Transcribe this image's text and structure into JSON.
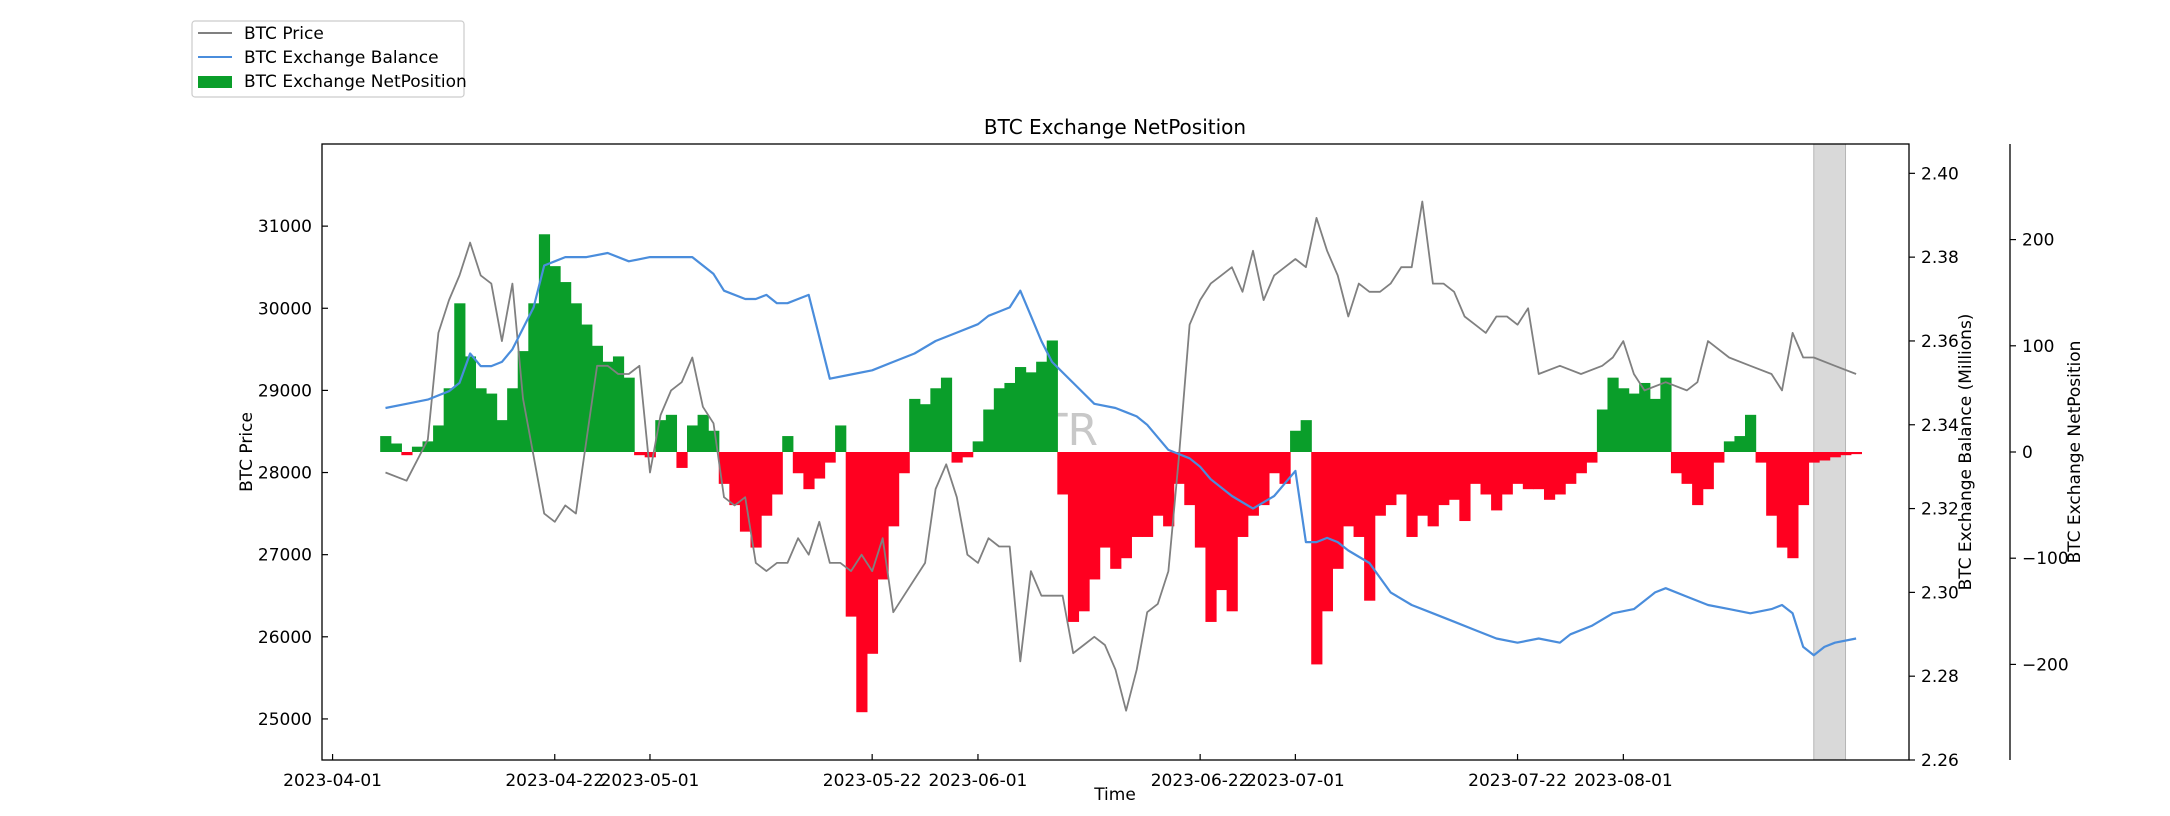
{
  "chart_data": {
    "type": "line",
    "title": "BTC Exchange NetPosition",
    "xlabel": "Time",
    "watermark": "ATR",
    "x_ticks": [
      "2023-04-01",
      "2023-04-22",
      "2023-05-01",
      "2023-05-22",
      "2023-06-01",
      "2023-06-22",
      "2023-07-01",
      "2023-07-22",
      "2023-08-01"
    ],
    "x_range": [
      "2023-03-31",
      "2023-08-28"
    ],
    "highlight_range": [
      "2023-08-19",
      "2023-08-22"
    ],
    "legend_position": "top-left, outside plot",
    "grid": false,
    "axes": {
      "price": {
        "label": "BTC Price",
        "side": "left",
        "ylim": [
          24500,
          32000
        ],
        "ticks": [
          "25000",
          "26000",
          "27000",
          "28000",
          "29000",
          "30000",
          "31000"
        ]
      },
      "balance": {
        "label": "BTC Exchange Balance (Millions)",
        "side": "right",
        "ylim": [
          2.26,
          2.407
        ],
        "ticks": [
          "2.26",
          "2.28",
          "2.30",
          "2.32",
          "2.34",
          "2.36",
          "2.38",
          "2.40"
        ]
      },
      "netposition": {
        "label": "BTC Exchange NetPosition",
        "side": "right-outer",
        "ylim": [
          -290,
          290
        ],
        "ticks": [
          "−200",
          "−100",
          "0",
          "100",
          "200"
        ]
      }
    },
    "series": [
      {
        "name": "BTC Price",
        "type": "line",
        "axis": "price",
        "color": "#808080",
        "x": [
          "2023-04-06",
          "2023-04-08",
          "2023-04-10",
          "2023-04-11",
          "2023-04-12",
          "2023-04-13",
          "2023-04-14",
          "2023-04-15",
          "2023-04-16",
          "2023-04-17",
          "2023-04-18",
          "2023-04-19",
          "2023-04-20",
          "2023-04-21",
          "2023-04-22",
          "2023-04-23",
          "2023-04-24",
          "2023-04-25",
          "2023-04-26",
          "2023-04-27",
          "2023-04-28",
          "2023-04-29",
          "2023-04-30",
          "2023-05-01",
          "2023-05-02",
          "2023-05-03",
          "2023-05-04",
          "2023-05-05",
          "2023-05-06",
          "2023-05-07",
          "2023-05-08",
          "2023-05-09",
          "2023-05-10",
          "2023-05-11",
          "2023-05-12",
          "2023-05-13",
          "2023-05-14",
          "2023-05-15",
          "2023-05-16",
          "2023-05-17",
          "2023-05-18",
          "2023-05-19",
          "2023-05-20",
          "2023-05-21",
          "2023-05-22",
          "2023-05-23",
          "2023-05-24",
          "2023-05-25",
          "2023-05-26",
          "2023-05-27",
          "2023-05-28",
          "2023-05-29",
          "2023-05-30",
          "2023-05-31",
          "2023-06-01",
          "2023-06-02",
          "2023-06-03",
          "2023-06-04",
          "2023-06-05",
          "2023-06-06",
          "2023-06-07",
          "2023-06-08",
          "2023-06-09",
          "2023-06-10",
          "2023-06-11",
          "2023-06-12",
          "2023-06-13",
          "2023-06-14",
          "2023-06-15",
          "2023-06-16",
          "2023-06-17",
          "2023-06-18",
          "2023-06-19",
          "2023-06-20",
          "2023-06-21",
          "2023-06-22",
          "2023-06-23",
          "2023-06-24",
          "2023-06-25",
          "2023-06-26",
          "2023-06-27",
          "2023-06-28",
          "2023-06-29",
          "2023-06-30",
          "2023-07-01",
          "2023-07-02",
          "2023-07-03",
          "2023-07-04",
          "2023-07-05",
          "2023-07-06",
          "2023-07-07",
          "2023-07-08",
          "2023-07-09",
          "2023-07-10",
          "2023-07-11",
          "2023-07-12",
          "2023-07-13",
          "2023-07-14",
          "2023-07-15",
          "2023-07-16",
          "2023-07-17",
          "2023-07-18",
          "2023-07-19",
          "2023-07-20",
          "2023-07-21",
          "2023-07-22",
          "2023-07-23",
          "2023-07-24",
          "2023-07-26",
          "2023-07-28",
          "2023-07-30",
          "2023-07-31",
          "2023-08-01",
          "2023-08-02",
          "2023-08-03",
          "2023-08-05",
          "2023-08-07",
          "2023-08-08",
          "2023-08-09",
          "2023-08-11",
          "2023-08-13",
          "2023-08-15",
          "2023-08-16",
          "2023-08-17",
          "2023-08-18",
          "2023-08-19",
          "2023-08-21",
          "2023-08-23"
        ],
        "values": [
          28000,
          27900,
          28400,
          29700,
          30100,
          30400,
          30800,
          30400,
          30300,
          29600,
          30300,
          28900,
          28200,
          27500,
          27400,
          27600,
          27500,
          28400,
          29300,
          29300,
          29200,
          29200,
          29300,
          28000,
          28700,
          29000,
          29100,
          29400,
          28800,
          28600,
          27700,
          27600,
          27700,
          26900,
          26800,
          26900,
          26900,
          27200,
          27000,
          27400,
          26900,
          26900,
          26800,
          27000,
          26800,
          27200,
          26300,
          26500,
          26700,
          26900,
          27800,
          28100,
          27700,
          27000,
          26900,
          27200,
          27100,
          27100,
          25700,
          26800,
          26500,
          26500,
          26500,
          25800,
          25900,
          26000,
          25900,
          25600,
          25100,
          25600,
          26300,
          26400,
          26800,
          28200,
          29800,
          30100,
          30300,
          30400,
          30500,
          30200,
          30700,
          30100,
          30400,
          30500,
          30600,
          30500,
          31100,
          30700,
          30400,
          29900,
          30300,
          30200,
          30200,
          30300,
          30500,
          30500,
          31300,
          30300,
          30300,
          30200,
          29900,
          29800,
          29700,
          29900,
          29900,
          29800,
          30000,
          29200,
          29300,
          29200,
          29300,
          29400,
          29600,
          29200,
          29000,
          29100,
          29000,
          29100,
          29600,
          29400,
          29300,
          29200,
          29000,
          29700,
          29400,
          29400,
          29300,
          29200
        ]
      },
      {
        "name": "BTC Exchange Balance",
        "type": "line",
        "axis": "balance",
        "color": "#4a8ddc",
        "x": [
          "2023-04-06",
          "2023-04-08",
          "2023-04-10",
          "2023-04-12",
          "2023-04-13",
          "2023-04-14",
          "2023-04-15",
          "2023-04-16",
          "2023-04-17",
          "2023-04-18",
          "2023-04-19",
          "2023-04-20",
          "2023-04-21",
          "2023-04-22",
          "2023-04-23",
          "2023-04-25",
          "2023-04-27",
          "2023-04-29",
          "2023-05-01",
          "2023-05-03",
          "2023-05-05",
          "2023-05-06",
          "2023-05-07",
          "2023-05-08",
          "2023-05-10",
          "2023-05-11",
          "2023-05-12",
          "2023-05-13",
          "2023-05-14",
          "2023-05-15",
          "2023-05-16",
          "2023-05-18",
          "2023-05-20",
          "2023-05-22",
          "2023-05-24",
          "2023-05-26",
          "2023-05-28",
          "2023-05-30",
          "2023-06-01",
          "2023-06-02",
          "2023-06-03",
          "2023-06-04",
          "2023-06-05",
          "2023-06-06",
          "2023-06-07",
          "2023-06-08",
          "2023-06-10",
          "2023-06-12",
          "2023-06-14",
          "2023-06-15",
          "2023-06-16",
          "2023-06-17",
          "2023-06-19",
          "2023-06-20",
          "2023-06-21",
          "2023-06-22",
          "2023-06-23",
          "2023-06-25",
          "2023-06-27",
          "2023-06-29",
          "2023-06-30",
          "2023-07-01",
          "2023-07-02",
          "2023-07-03",
          "2023-07-04",
          "2023-07-05",
          "2023-07-06",
          "2023-07-08",
          "2023-07-10",
          "2023-07-12",
          "2023-07-14",
          "2023-07-16",
          "2023-07-18",
          "2023-07-20",
          "2023-07-22",
          "2023-07-24",
          "2023-07-26",
          "2023-07-27",
          "2023-07-29",
          "2023-07-31",
          "2023-08-02",
          "2023-08-04",
          "2023-08-05",
          "2023-08-07",
          "2023-08-09",
          "2023-08-11",
          "2023-08-13",
          "2023-08-15",
          "2023-08-16",
          "2023-08-17",
          "2023-08-18",
          "2023-08-19",
          "2023-08-20",
          "2023-08-21",
          "2023-08-23"
        ],
        "values": [
          2.344,
          2.345,
          2.346,
          2.348,
          2.35,
          2.357,
          2.354,
          2.354,
          2.355,
          2.358,
          2.363,
          2.368,
          2.378,
          2.379,
          2.38,
          2.38,
          2.381,
          2.379,
          2.38,
          2.38,
          2.38,
          2.378,
          2.376,
          2.372,
          2.37,
          2.37,
          2.371,
          2.369,
          2.369,
          2.37,
          2.371,
          2.351,
          2.352,
          2.353,
          2.355,
          2.357,
          2.36,
          2.362,
          2.364,
          2.366,
          2.367,
          2.368,
          2.372,
          2.366,
          2.36,
          2.355,
          2.35,
          2.345,
          2.344,
          2.343,
          2.342,
          2.34,
          2.334,
          2.333,
          2.332,
          2.33,
          2.327,
          2.323,
          2.32,
          2.323,
          2.326,
          2.329,
          2.312,
          2.312,
          2.313,
          2.312,
          2.31,
          2.307,
          2.3,
          2.297,
          2.295,
          2.293,
          2.291,
          2.289,
          2.288,
          2.289,
          2.288,
          2.29,
          2.292,
          2.295,
          2.296,
          2.3,
          2.301,
          2.299,
          2.297,
          2.296,
          2.295,
          2.296,
          2.297,
          2.295,
          2.287,
          2.285,
          2.287,
          2.288,
          2.289
        ]
      },
      {
        "name": "BTC Exchange NetPosition",
        "type": "bar",
        "axis": "netposition",
        "color_positive": "#0a9e2a",
        "color_negative": "#ff0020",
        "x": [
          "2023-04-06",
          "2023-04-07",
          "2023-04-08",
          "2023-04-09",
          "2023-04-10",
          "2023-04-11",
          "2023-04-12",
          "2023-04-13",
          "2023-04-14",
          "2023-04-15",
          "2023-04-16",
          "2023-04-17",
          "2023-04-18",
          "2023-04-19",
          "2023-04-20",
          "2023-04-21",
          "2023-04-22",
          "2023-04-23",
          "2023-04-24",
          "2023-04-25",
          "2023-04-26",
          "2023-04-27",
          "2023-04-28",
          "2023-04-29",
          "2023-04-30",
          "2023-05-01",
          "2023-05-02",
          "2023-05-03",
          "2023-05-04",
          "2023-05-05",
          "2023-05-06",
          "2023-05-07",
          "2023-05-08",
          "2023-05-09",
          "2023-05-10",
          "2023-05-11",
          "2023-05-12",
          "2023-05-13",
          "2023-05-14",
          "2023-05-15",
          "2023-05-16",
          "2023-05-17",
          "2023-05-18",
          "2023-05-19",
          "2023-05-20",
          "2023-05-21",
          "2023-05-22",
          "2023-05-23",
          "2023-05-24",
          "2023-05-25",
          "2023-05-26",
          "2023-05-27",
          "2023-05-28",
          "2023-05-29",
          "2023-05-30",
          "2023-05-31",
          "2023-06-01",
          "2023-06-02",
          "2023-06-03",
          "2023-06-04",
          "2023-06-05",
          "2023-06-06",
          "2023-06-07",
          "2023-06-08",
          "2023-06-09",
          "2023-06-10",
          "2023-06-11",
          "2023-06-12",
          "2023-06-13",
          "2023-06-14",
          "2023-06-15",
          "2023-06-16",
          "2023-06-17",
          "2023-06-18",
          "2023-06-19",
          "2023-06-20",
          "2023-06-21",
          "2023-06-22",
          "2023-06-23",
          "2023-06-24",
          "2023-06-25",
          "2023-06-26",
          "2023-06-27",
          "2023-06-28",
          "2023-06-29",
          "2023-06-30",
          "2023-07-01",
          "2023-07-02",
          "2023-07-03",
          "2023-07-04",
          "2023-07-05",
          "2023-07-06",
          "2023-07-07",
          "2023-07-08",
          "2023-07-09",
          "2023-07-10",
          "2023-07-11",
          "2023-07-12",
          "2023-07-13",
          "2023-07-14",
          "2023-07-15",
          "2023-07-16",
          "2023-07-17",
          "2023-07-18",
          "2023-07-19",
          "2023-07-20",
          "2023-07-21",
          "2023-07-22",
          "2023-07-23",
          "2023-07-24",
          "2023-07-25",
          "2023-07-26",
          "2023-07-27",
          "2023-07-28",
          "2023-07-29",
          "2023-07-30",
          "2023-07-31",
          "2023-08-01",
          "2023-08-02",
          "2023-08-03",
          "2023-08-04",
          "2023-08-05",
          "2023-08-06",
          "2023-08-07",
          "2023-08-08",
          "2023-08-09",
          "2023-08-10",
          "2023-08-11",
          "2023-08-12",
          "2023-08-13",
          "2023-08-14",
          "2023-08-15",
          "2023-08-16",
          "2023-08-17",
          "2023-08-18",
          "2023-08-19",
          "2023-08-20",
          "2023-08-21",
          "2023-08-22",
          "2023-08-23"
        ],
        "values": [
          15,
          8,
          -3,
          5,
          10,
          25,
          60,
          140,
          90,
          60,
          55,
          30,
          60,
          95,
          140,
          205,
          175,
          160,
          140,
          120,
          100,
          85,
          90,
          70,
          -3,
          -5,
          30,
          35,
          -15,
          25,
          35,
          20,
          -30,
          -50,
          -75,
          -90,
          -60,
          -40,
          15,
          -20,
          -35,
          -25,
          -10,
          25,
          -155,
          -245,
          -190,
          -120,
          -70,
          -20,
          50,
          45,
          60,
          70,
          -10,
          -5,
          10,
          40,
          60,
          65,
          80,
          75,
          85,
          105,
          -40,
          -160,
          -150,
          -120,
          -90,
          -110,
          -100,
          -80,
          -80,
          -60,
          -70,
          -30,
          -50,
          -90,
          -160,
          -130,
          -150,
          -80,
          -60,
          -50,
          -20,
          -30,
          20,
          30,
          -200,
          -150,
          -110,
          -70,
          -80,
          -140,
          -60,
          -50,
          -40,
          -80,
          -60,
          -70,
          -50,
          -45,
          -65,
          -30,
          -40,
          -55,
          -40,
          -30,
          -35,
          -35,
          -45,
          -40,
          -30,
          -20,
          -10,
          40,
          70,
          60,
          55,
          65,
          50,
          70,
          -20,
          -30,
          -50,
          -35,
          -10,
          10,
          15,
          35,
          -10,
          -60,
          -90,
          -100,
          -50,
          -10,
          -8,
          -5,
          -3,
          -2
        ]
      }
    ]
  }
}
